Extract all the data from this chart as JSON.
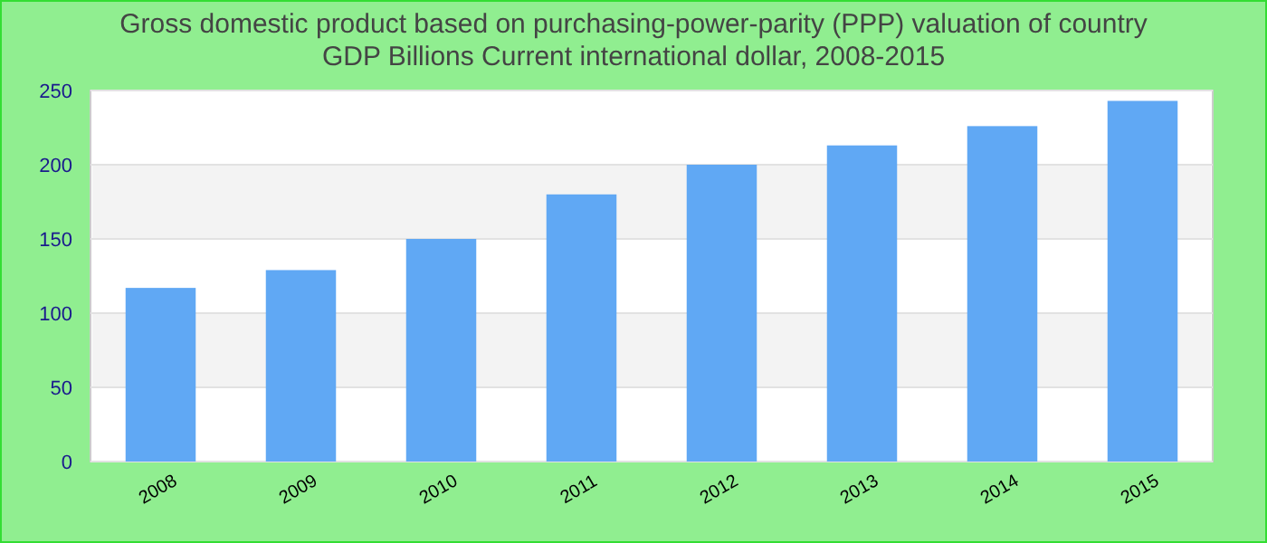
{
  "chart_data": {
    "type": "bar",
    "title": "Gross domestic product based on purchasing-power-parity (PPP) valuation of country GDP Billions Current international dollar, 2008-2015",
    "categories": [
      "2008",
      "2009",
      "2010",
      "2011",
      "2012",
      "2013",
      "2014",
      "2015"
    ],
    "values": [
      117,
      129,
      150,
      180,
      200,
      213,
      226,
      243
    ],
    "color": "#60a8f4",
    "ylim": [
      0,
      250
    ],
    "yticks": [
      0,
      50,
      100,
      150,
      200,
      250
    ],
    "grid": "y"
  }
}
